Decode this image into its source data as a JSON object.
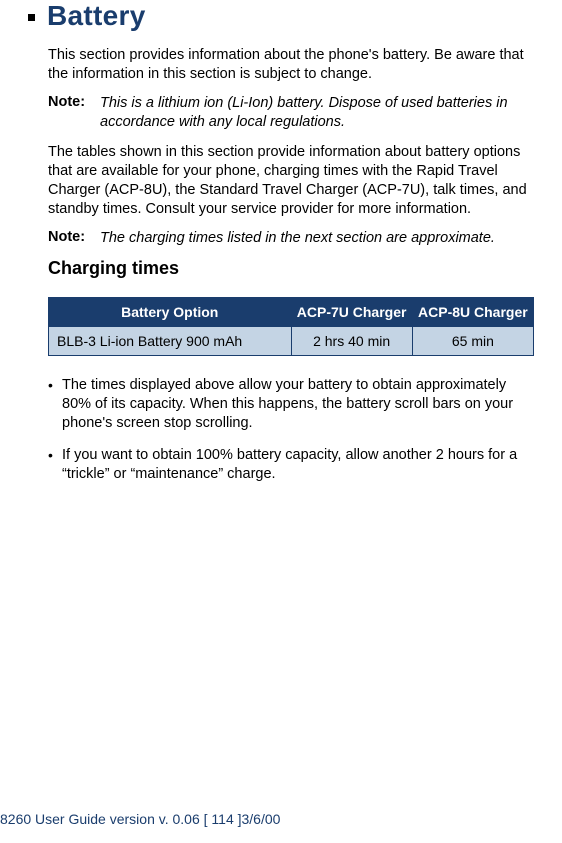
{
  "title": "Battery",
  "intro": "This section provides information about the phone's battery. Be aware that the information in this section is subject to change.",
  "note1_label": "Note:",
  "note1_text": "This is a lithium ion (Li-Ion) battery. Dispose of used batteries in accordance with any local regulations.",
  "para2": "The tables shown in this section provide information about battery options that are available for your phone, charging times with the Rapid Travel Charger (ACP-8U), the Standard Travel Charger (ACP-7U), talk times, and standby times. Consult your service provider for more information.",
  "note2_label": "Note:",
  "note2_text": "The charging times listed in the next section are approximate.",
  "subheading": "Charging times",
  "table": {
    "header_bg": "#1a3d6d",
    "header_fg": "#ffffff",
    "row_bg": "#c4d4e4",
    "border_color": "#1a3d6d",
    "columns": [
      "Battery Option",
      "ACP-7U Charger",
      "ACP-8U Charger"
    ],
    "rows": [
      [
        "BLB-3 Li-ion Battery 900 mAh",
        "2 hrs 40 min",
        "65 min"
      ]
    ]
  },
  "bullets": [
    "The times displayed above allow your battery to obtain approximately 80% of its capacity. When this happens, the battery scroll bars on your phone's screen stop scrolling.",
    "If you want to obtain 100% battery capacity, allow another 2 hours for a “trickle” or “maintenance” charge."
  ],
  "footer": "8260 User Guide version v. 0.06 [ 114 ]3/6/00",
  "colors": {
    "title_color": "#1a3d6d",
    "footer_color": "#1a3d6d",
    "text_color": "#000000",
    "background": "#ffffff"
  }
}
